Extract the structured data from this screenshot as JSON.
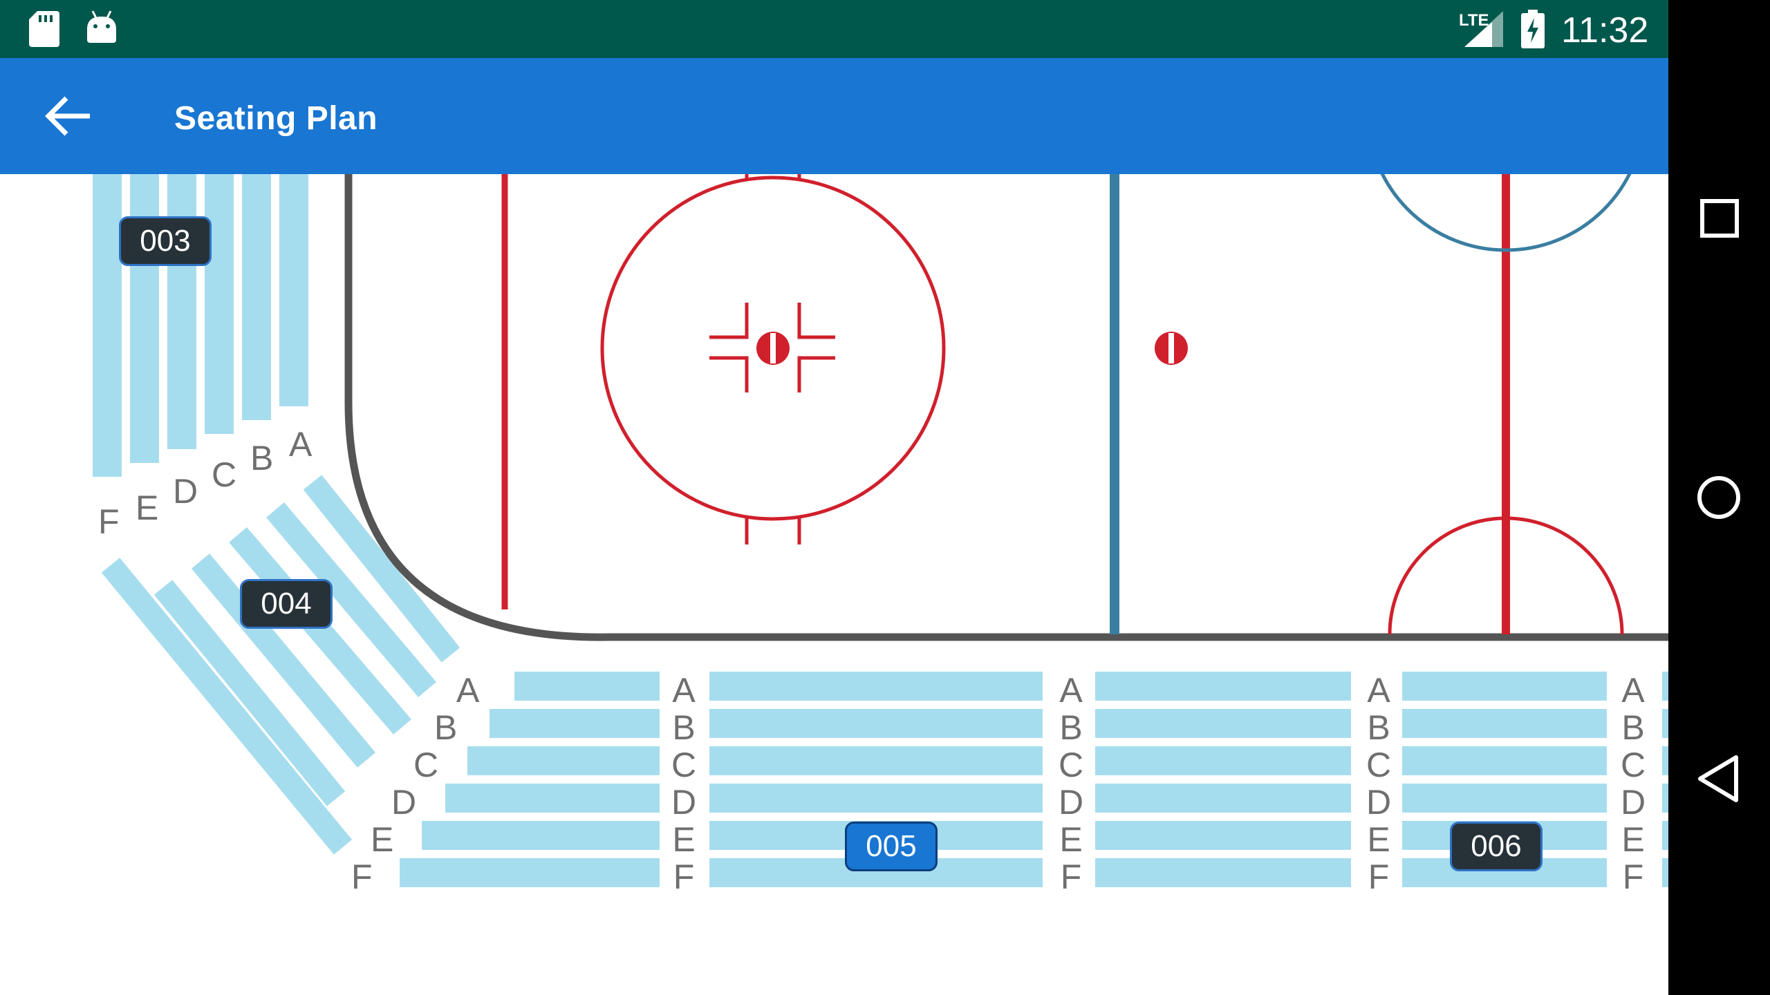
{
  "status_bar": {
    "time": "11:32",
    "network": "LTE",
    "icons": [
      "sd-card-icon",
      "android-icon",
      "lte-signal-icon",
      "battery-charging-icon"
    ]
  },
  "app_bar": {
    "title": "Seating Plan",
    "back_icon": "arrow-back-icon"
  },
  "sections": [
    {
      "label": "003",
      "selected": false
    },
    {
      "label": "004",
      "selected": false
    },
    {
      "label": "005",
      "selected": true
    },
    {
      "label": "006",
      "selected": false
    }
  ],
  "rows": [
    "A",
    "B",
    "C",
    "D",
    "E",
    "F"
  ],
  "colors": {
    "status_bar": "#00574B",
    "app_bar": "#1976D2",
    "seat_row": "#A6DDEE",
    "red_line": "#D0202C",
    "blue_line": "#3A7EA1",
    "boards": "#555555",
    "badge": "#263238",
    "badge_selected": "#1976D2"
  },
  "nav_bar": {
    "icons": [
      "recent-apps-icon",
      "home-icon",
      "back-icon"
    ]
  }
}
